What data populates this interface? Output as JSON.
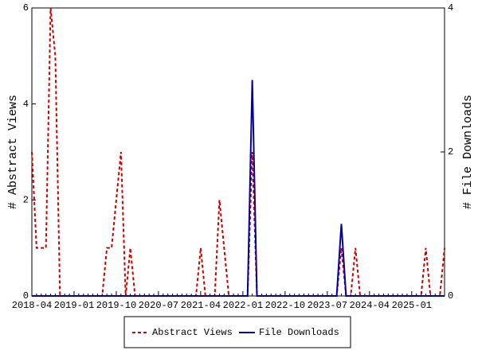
{
  "chart_data": {
    "type": "line",
    "categories": [
      "2018-04",
      null,
      null,
      null,
      null,
      null,
      null,
      null,
      null,
      "2019-01",
      null,
      null,
      null,
      null,
      null,
      null,
      null,
      null,
      "2019-10",
      null,
      null,
      null,
      null,
      null,
      null,
      null,
      null,
      "2020-07",
      null,
      null,
      null,
      null,
      null,
      null,
      null,
      null,
      "2021-04",
      null,
      null,
      null,
      null,
      null,
      null,
      null,
      null,
      "2022-01",
      null,
      null,
      null,
      null,
      null,
      null,
      null,
      null,
      "2022-10",
      null,
      null,
      null,
      null,
      null,
      null,
      null,
      null,
      "2023-07",
      null,
      null,
      null,
      null,
      null,
      null,
      null,
      null,
      "2024-04",
      null,
      null,
      null,
      null,
      null,
      null,
      null,
      null,
      "2025-01",
      null,
      null,
      null,
      null,
      null,
      null,
      null
    ],
    "series": [
      {
        "name": "Abstract Views",
        "color": "#cc0000",
        "dashed": true,
        "values": [
          3,
          1,
          1,
          1,
          6,
          5,
          0,
          0,
          0,
          0,
          0,
          0,
          0,
          0,
          0,
          0,
          1,
          1,
          2,
          3,
          0,
          1,
          0,
          0,
          0,
          0,
          0,
          0,
          0,
          0,
          0,
          0,
          0,
          0,
          0,
          0,
          1,
          0,
          0,
          0,
          2,
          1,
          0,
          0,
          0,
          0,
          0,
          3,
          0,
          0,
          0,
          0,
          0,
          0,
          0,
          0,
          0,
          0,
          0,
          0,
          0,
          0,
          0,
          0,
          0,
          0,
          1,
          0,
          0,
          1,
          0,
          0,
          0,
          0,
          0,
          0,
          0,
          0,
          0,
          0,
          0,
          0,
          0,
          0,
          1,
          0,
          0,
          0,
          1
        ]
      },
      {
        "name": "File Downloads",
        "color": "#0000aa",
        "axis": "y2",
        "values": [
          0,
          0,
          0,
          0,
          0,
          0,
          0,
          0,
          0,
          0,
          0,
          0,
          0,
          0,
          0,
          0,
          0,
          0,
          0,
          0,
          0,
          0,
          0,
          0,
          0,
          0,
          0,
          0,
          0,
          0,
          0,
          0,
          0,
          0,
          0,
          0,
          0,
          0,
          0,
          0,
          0,
          0,
          0,
          0,
          0,
          0,
          0,
          3,
          0,
          0,
          0,
          0,
          0,
          0,
          0,
          0,
          0,
          0,
          0,
          0,
          0,
          0,
          0,
          0,
          0,
          0,
          1,
          0,
          0,
          0,
          0,
          0,
          0,
          0,
          0,
          0,
          0,
          0,
          0,
          0,
          0,
          0,
          0,
          0,
          0,
          0,
          0,
          0,
          0
        ]
      }
    ],
    "ylabel": "# Abstract Views",
    "y2label": "# File Downloads",
    "ylim": [
      0,
      6
    ],
    "yticks": [
      0,
      2,
      4,
      6
    ],
    "y2lim": [
      0,
      4
    ],
    "y2ticks": [
      0,
      2,
      4
    ]
  }
}
